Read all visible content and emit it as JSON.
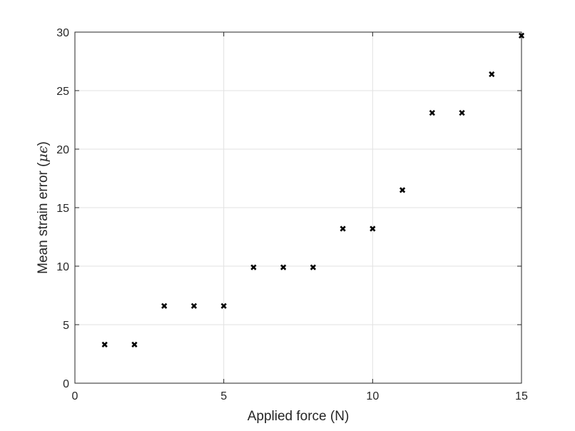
{
  "chart_data": {
    "type": "scatter",
    "title": "",
    "xlabel": "Applied force (N)",
    "ylabel": "Mean strain error (",
    "ylabel_unit_mu": "μ",
    "ylabel_unit_epsilon": "ϵ",
    "ylabel_close": ")",
    "xlim": [
      0,
      15
    ],
    "ylim": [
      0,
      30
    ],
    "xticks": [
      0,
      5,
      10,
      15
    ],
    "yticks": [
      0,
      5,
      10,
      15,
      20,
      25,
      30
    ],
    "xtick_labels": [
      "0",
      "5",
      "10",
      "15"
    ],
    "ytick_labels": [
      "0",
      "5",
      "10",
      "15",
      "20",
      "25",
      "30"
    ],
    "grid": true,
    "marker": "x",
    "marker_color": "#000000",
    "series": [
      {
        "x": [
          1,
          2,
          3,
          4,
          5,
          6,
          7,
          8,
          9,
          10,
          11,
          12,
          13,
          14,
          15
        ],
        "y": [
          3.3,
          3.3,
          6.6,
          6.6,
          6.6,
          9.9,
          9.9,
          9.9,
          13.2,
          13.2,
          16.5,
          23.1,
          23.1,
          26.4,
          29.7
        ]
      }
    ]
  }
}
